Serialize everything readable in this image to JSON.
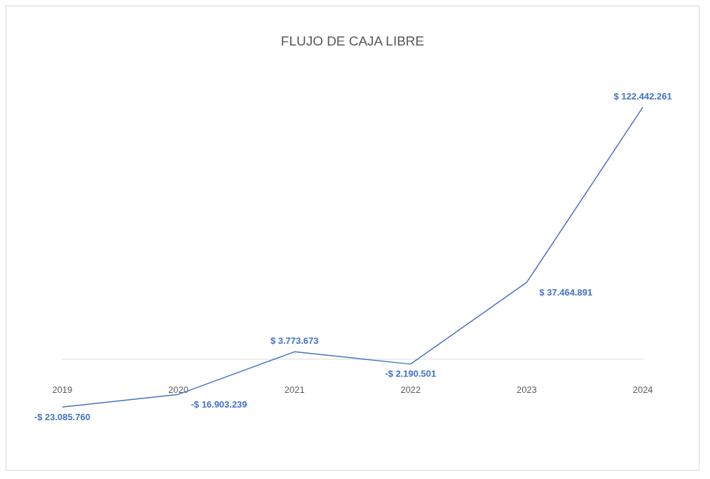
{
  "chart_data": {
    "type": "line",
    "title": "FLUJO DE CAJA LIBRE",
    "categories": [
      "2019",
      "2020",
      "2021",
      "2022",
      "2023",
      "2024"
    ],
    "series": [
      {
        "color": "#4472c4",
        "values": [
          -23085760,
          -16903239,
          3773673,
          -2190501,
          37464891,
          122442261
        ],
        "value_labels": [
          "-$ 23.085.760",
          "-$ 16.903.239",
          "$ 3.773.673",
          "-$ 2.190.501",
          "$ 37.464.891",
          "$ 122.442.261"
        ]
      }
    ],
    "grid": false,
    "legend": false,
    "line_style": "solid",
    "tick_labels": "x"
  }
}
